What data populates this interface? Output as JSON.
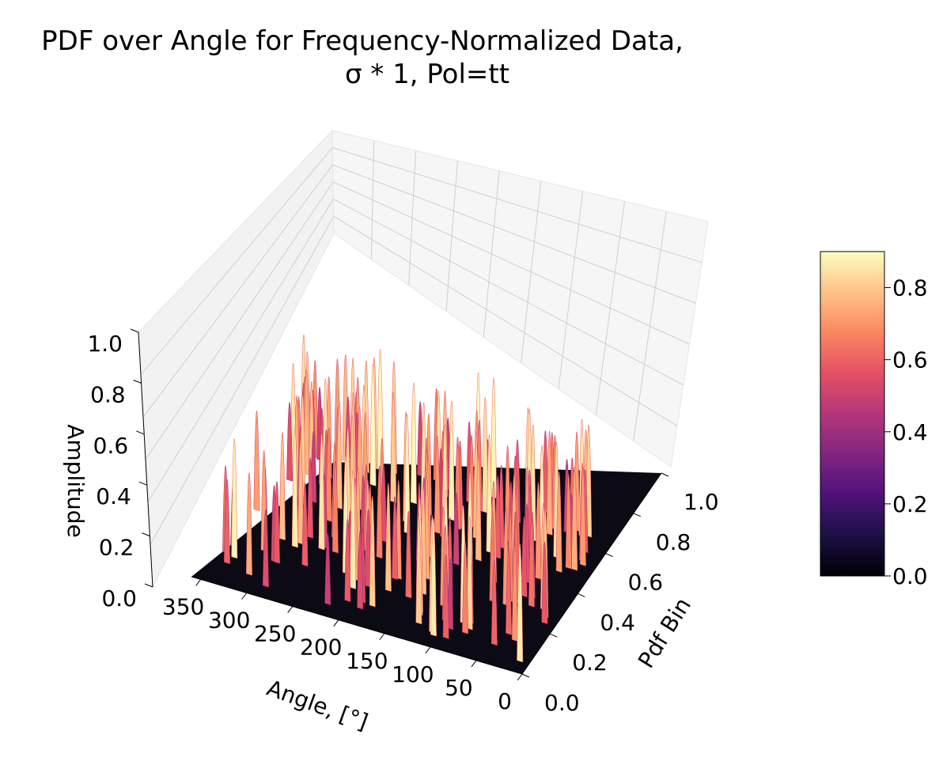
{
  "chart_data": {
    "type": "surface3d",
    "title_line1": "PDF over Angle for Frequency-Normalized Data,",
    "title_line2": "σ * 1, Pol=tt",
    "xlabel": "Angle, [°]",
    "ylabel": "Pdf Bin",
    "zlabel": "Amplitude",
    "x_ticks": [
      "350",
      "300",
      "250",
      "200",
      "150",
      "100",
      "50",
      "0"
    ],
    "x_tick_values": [
      350,
      300,
      250,
      200,
      150,
      100,
      50,
      0
    ],
    "y_ticks": [
      "0.0",
      "0.2",
      "0.4",
      "0.6",
      "0.8",
      "1.0"
    ],
    "y_tick_values": [
      0,
      0.2,
      0.4,
      0.6,
      0.8,
      1.0
    ],
    "z_ticks": [
      "0.0",
      "0.2",
      "0.4",
      "0.6",
      "0.8",
      "1.0"
    ],
    "z_tick_values": [
      0,
      0.2,
      0.4,
      0.6,
      0.8,
      1.0
    ],
    "xlim": [
      0,
      360
    ],
    "ylim": [
      0,
      1
    ],
    "zlim": [
      0,
      1
    ],
    "colormap": "magma",
    "grid": true,
    "colorbar": {
      "ticks": [
        "0.0",
        "0.2",
        "0.4",
        "0.6",
        "0.8"
      ],
      "tick_values": [
        0,
        0.2,
        0.4,
        0.6,
        0.8
      ],
      "range": [
        0,
        0.9
      ],
      "placement": "right"
    },
    "features": {
      "active_angle_segments": [
        [
          10,
          115
        ],
        [
          125,
          225
        ],
        [
          240,
          345
        ]
      ],
      "pdf_bin_active_range": [
        0.05,
        0.7
      ],
      "amplitude_peak": 0.9
    },
    "colors": {
      "pane": "#f2f2f2",
      "grid": "#cfcfcf",
      "floor": "#0c0a14",
      "stops": [
        "#000004",
        "#1c1044",
        "#4f127b",
        "#812581",
        "#b5367a",
        "#e55064",
        "#fb8761",
        "#fec287",
        "#fcfdbf"
      ]
    }
  }
}
